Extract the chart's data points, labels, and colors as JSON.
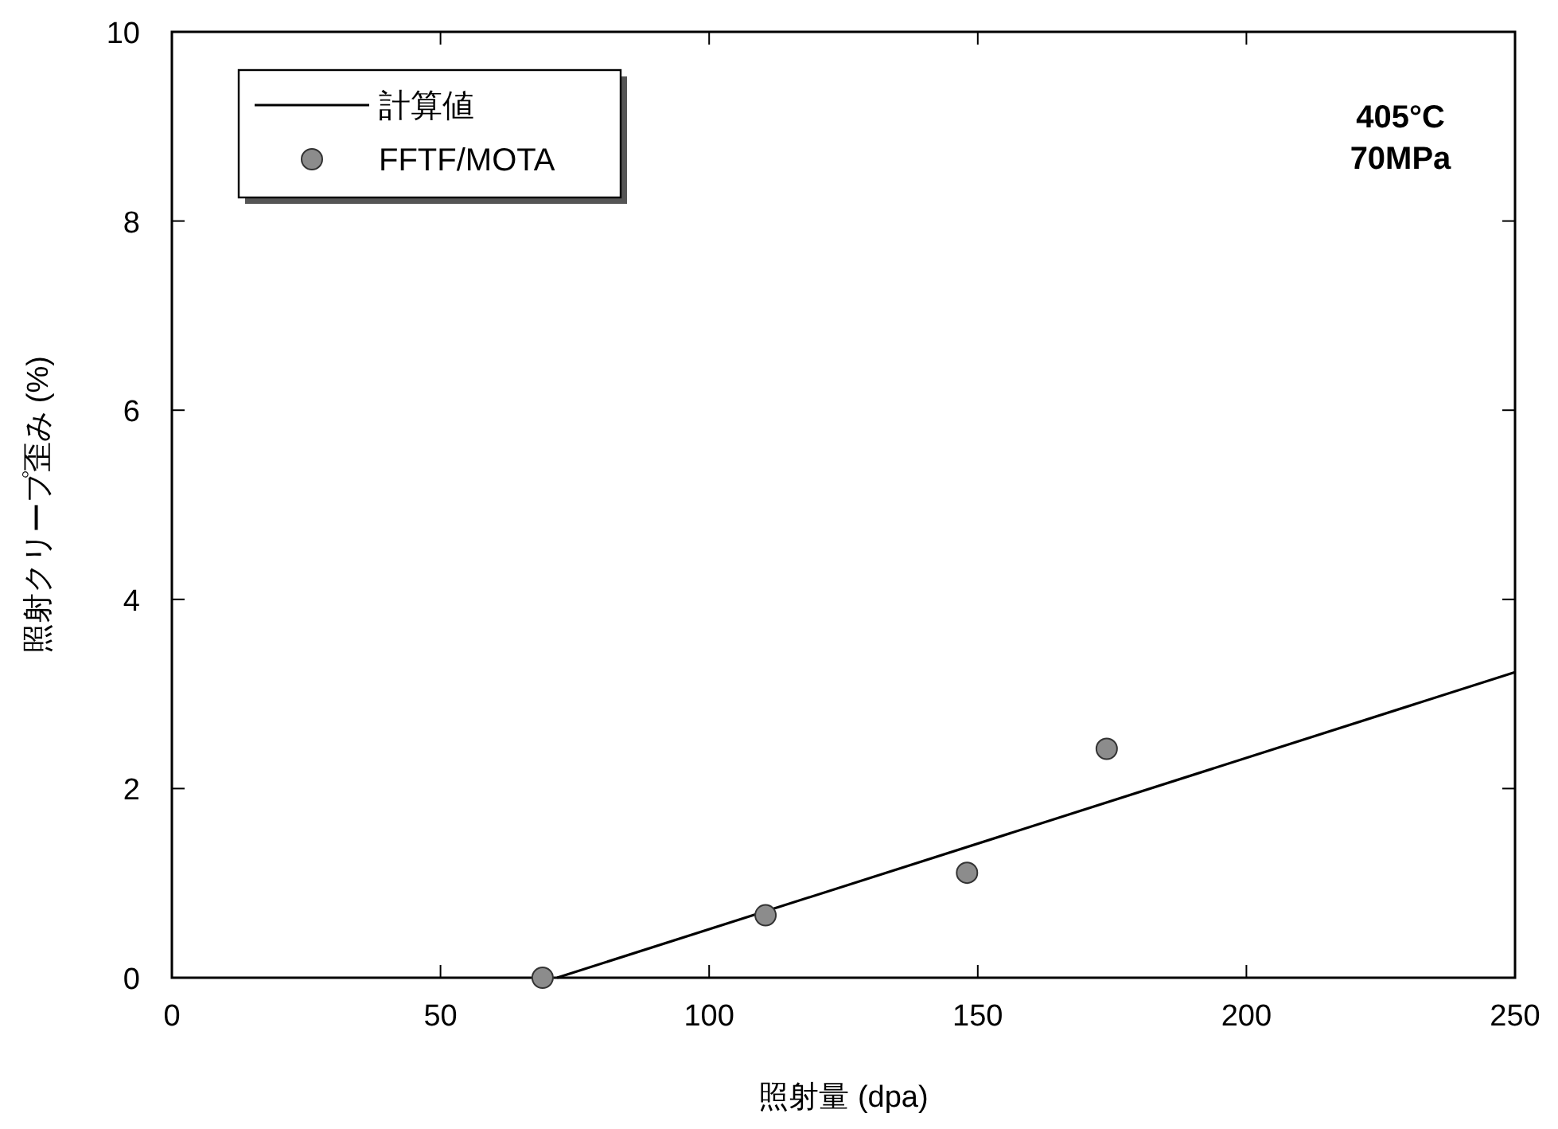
{
  "chart_data": {
    "type": "line",
    "xlabel": "照射量 (dpa)",
    "ylabel": "照射クリープ歪み (%)",
    "xlim": [
      0,
      250
    ],
    "ylim": [
      0,
      10
    ],
    "xticks": [
      0,
      50,
      100,
      150,
      200,
      250
    ],
    "yticks": [
      0,
      2,
      4,
      6,
      8,
      10
    ],
    "grid": false,
    "legend": "top left",
    "annotations": [
      "405°C",
      "70MPa"
    ],
    "series": [
      {
        "name": "計算値",
        "color": "#000000",
        "line_style": "solid",
        "x": [
          71.7,
          250
        ],
        "values": [
          0,
          3.23
        ]
      },
      {
        "name": "FFTF/MOTA",
        "type": "scatter",
        "color": "#8c8c8c",
        "marker": "circle",
        "x": [
          69,
          110.5,
          148,
          174
        ],
        "values": [
          0,
          0.66,
          1.11,
          2.42
        ]
      }
    ]
  }
}
